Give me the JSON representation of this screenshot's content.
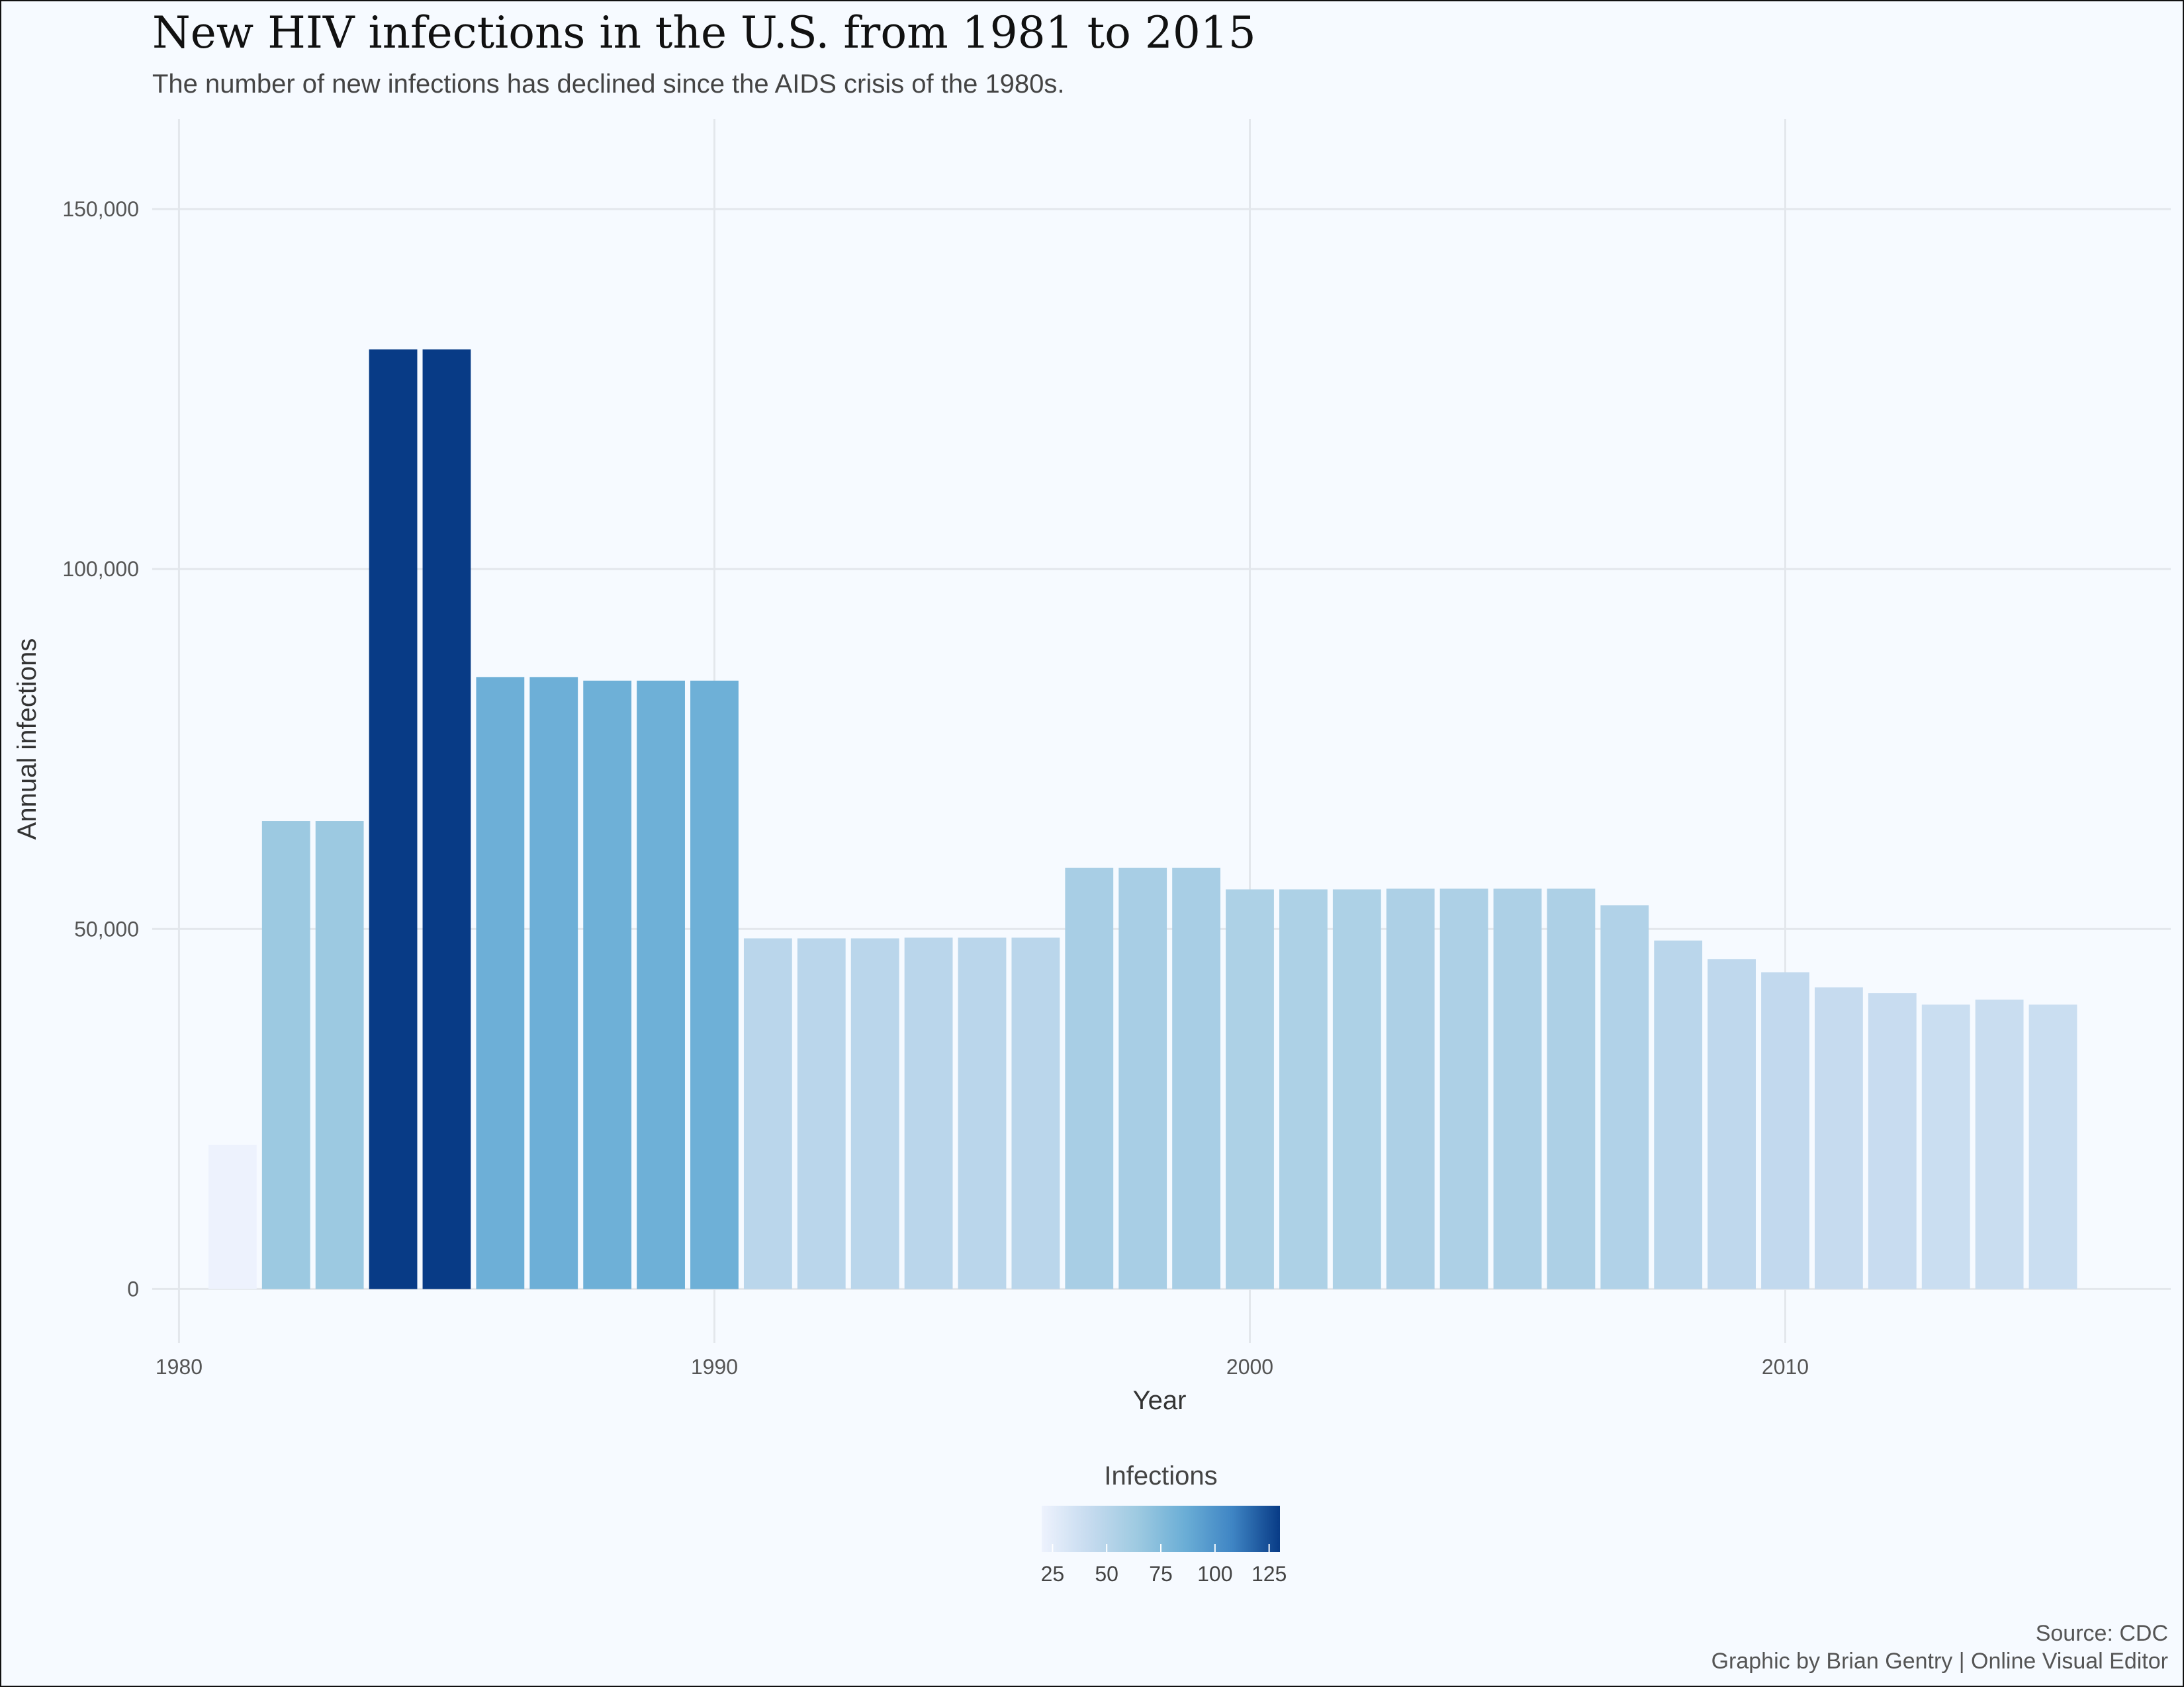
{
  "chart_data": {
    "type": "bar",
    "title": "New HIV infections in the U.S. from 1981 to 2015",
    "subtitle": "The number of new infections has declined since the AIDS crisis of the 1980s.",
    "xlabel": "Year",
    "ylabel": "Annual infections",
    "x": [
      1981,
      1982,
      1983,
      1984,
      1985,
      1986,
      1987,
      1988,
      1989,
      1990,
      1991,
      1992,
      1993,
      1994,
      1995,
      1996,
      1997,
      1998,
      1999,
      2000,
      2001,
      2002,
      2003,
      2004,
      2005,
      2006,
      2007,
      2008,
      2009,
      2010,
      2011,
      2012,
      2013,
      2014,
      2015
    ],
    "values": [
      20000,
      65000,
      65000,
      130500,
      130500,
      85000,
      85000,
      84500,
      84500,
      84500,
      48700,
      48700,
      48700,
      48800,
      48800,
      48800,
      58500,
      58500,
      58500,
      55500,
      55500,
      55500,
      55600,
      55600,
      55600,
      55600,
      53300,
      48400,
      45800,
      44000,
      41900,
      41100,
      39500,
      40200,
      39500
    ],
    "xlim": [
      1979.5,
      2017.2
    ],
    "ylim": [
      -7500,
      162500
    ],
    "x_ticks": [
      {
        "value": 1980,
        "label": "1980"
      },
      {
        "value": 1990,
        "label": "1990"
      },
      {
        "value": 2000,
        "label": "2000"
      },
      {
        "value": 2010,
        "label": "2010"
      }
    ],
    "y_ticks": [
      {
        "value": 0,
        "label": "0"
      },
      {
        "value": 50000,
        "label": "50,000"
      },
      {
        "value": 100000,
        "label": "100,000"
      },
      {
        "value": 150000,
        "label": "150,000"
      }
    ],
    "grid": true,
    "legend": {
      "title": "Infections",
      "placement": "bottom",
      "type": "color-gradient",
      "domain": [
        20,
        130
      ],
      "ticks": [
        {
          "value": 25,
          "label": "25"
        },
        {
          "value": 50,
          "label": "50"
        },
        {
          "value": 75,
          "label": "75"
        },
        {
          "value": 100,
          "label": "100"
        },
        {
          "value": 125,
          "label": "125"
        }
      ],
      "colors": [
        "#edf2fd",
        "#c6dbef",
        "#9ecae1",
        "#6baed6",
        "#3f85c4",
        "#083b86"
      ]
    },
    "caption": [
      "Source: CDC",
      "Graphic by Brian Gentry | Online Visual Editor"
    ]
  },
  "colors": {
    "background": "#f6faff",
    "grid": "#e3e7ec"
  }
}
